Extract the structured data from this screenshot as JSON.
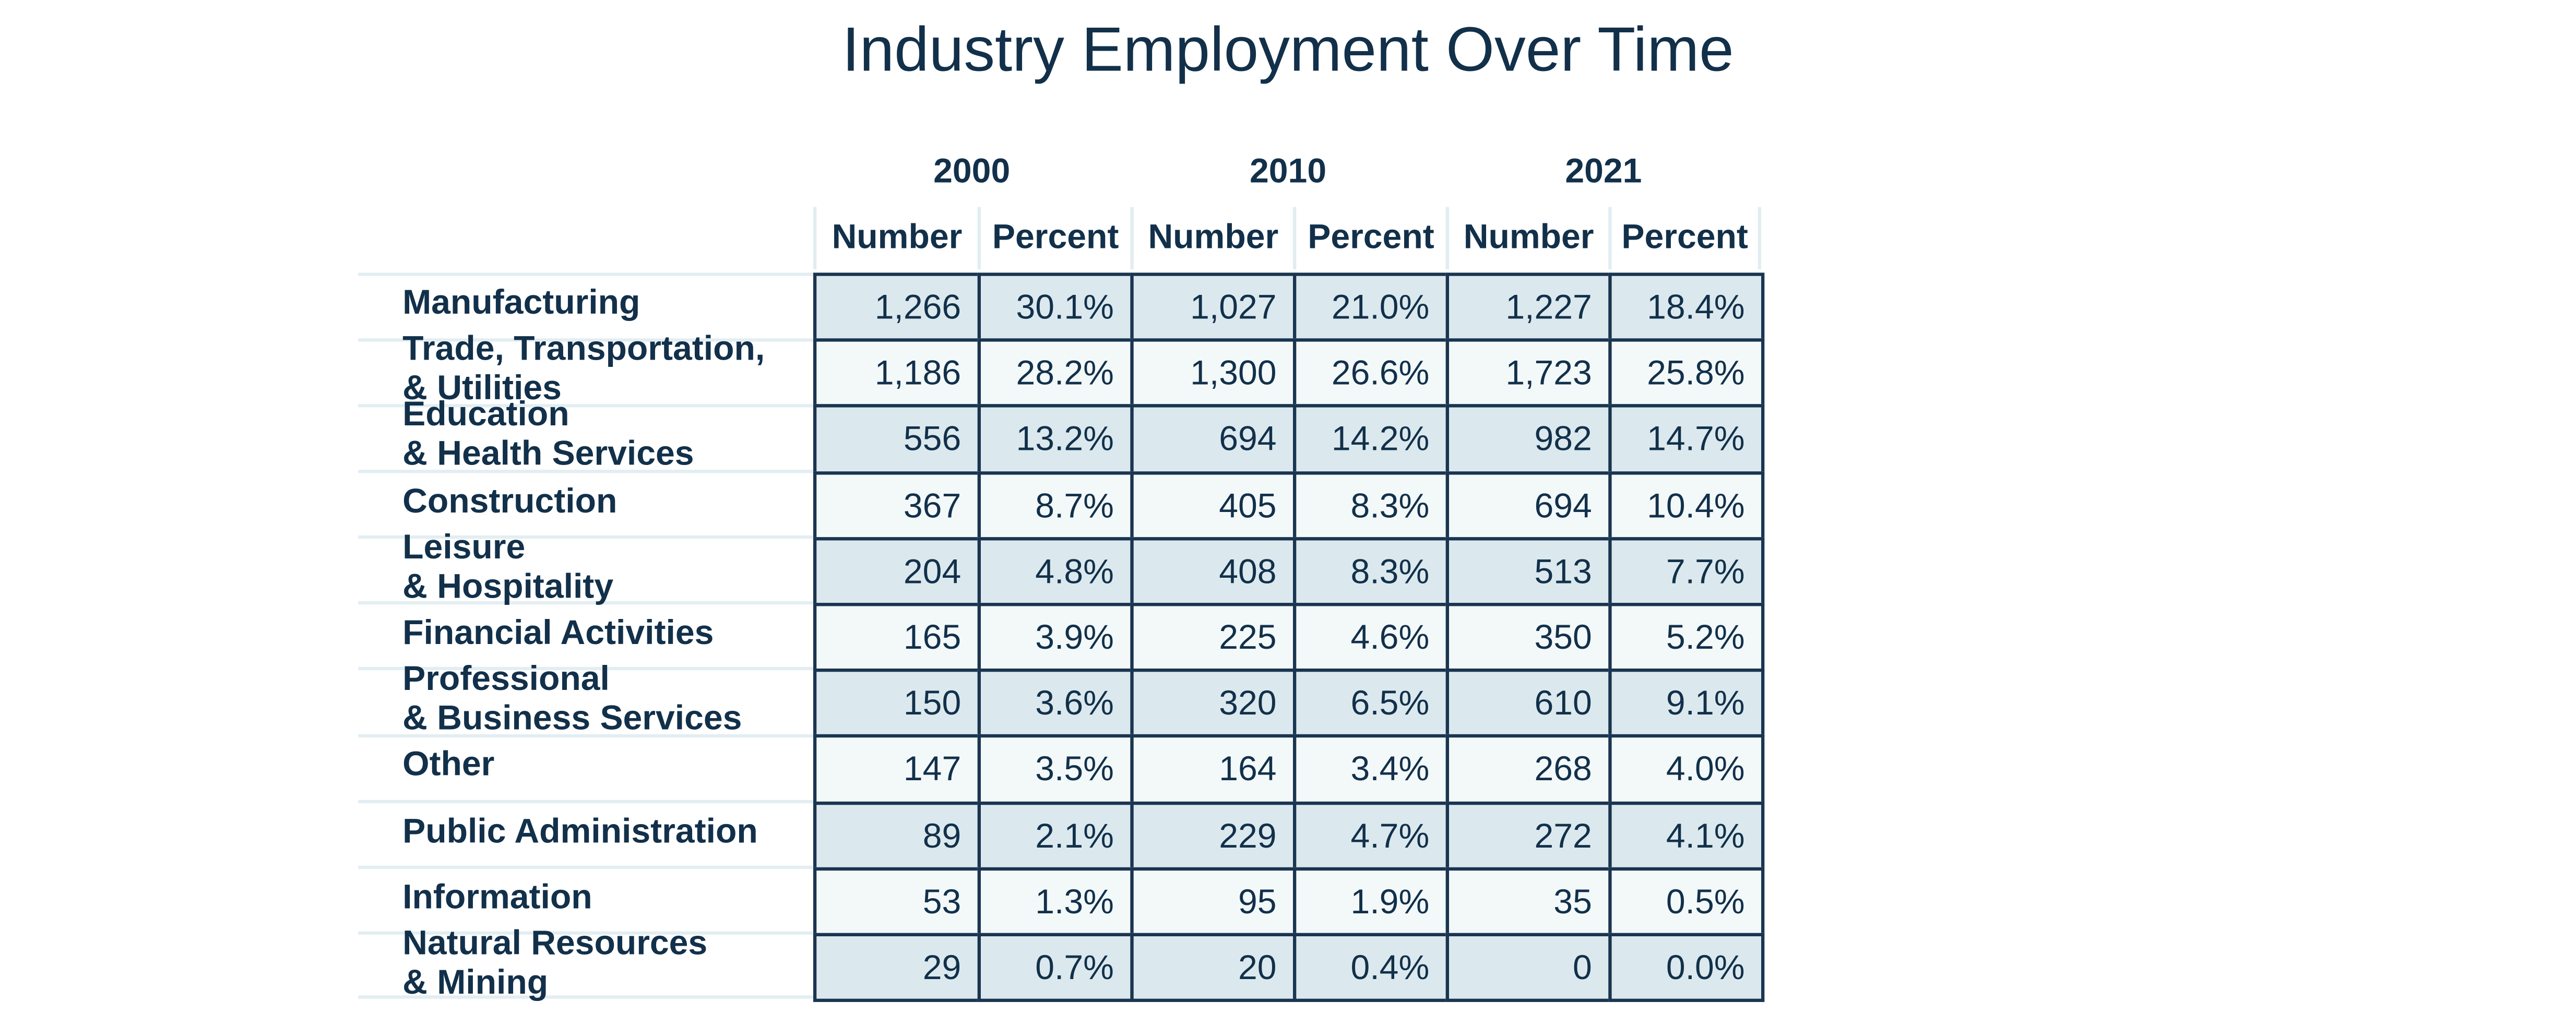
{
  "chart_data": {
    "type": "table",
    "title": "Industry Employment Over Time",
    "years": [
      "2000",
      "2010",
      "2021"
    ],
    "subheaders": [
      "Number",
      "Percent"
    ],
    "rows": [
      {
        "label": [
          "Manufacturing"
        ],
        "values": [
          "1,266",
          "30.1%",
          "1,027",
          "21.0%",
          "1,227",
          "18.4%"
        ]
      },
      {
        "label": [
          "Trade, Transportation,",
          "& Utilities"
        ],
        "values": [
          "1,186",
          "28.2%",
          "1,300",
          "26.6%",
          "1,723",
          "25.8%"
        ]
      },
      {
        "label": [
          "Education",
          "& Health Services"
        ],
        "values": [
          "556",
          "13.2%",
          "694",
          "14.2%",
          "982",
          "14.7%"
        ]
      },
      {
        "label": [
          "Construction"
        ],
        "values": [
          "367",
          "8.7%",
          "405",
          "8.3%",
          "694",
          "10.4%"
        ]
      },
      {
        "label": [
          "Leisure",
          "& Hospitality"
        ],
        "values": [
          "204",
          "4.8%",
          "408",
          "8.3%",
          "513",
          "7.7%"
        ]
      },
      {
        "label": [
          "Financial Activities"
        ],
        "values": [
          "165",
          "3.9%",
          "225",
          "4.6%",
          "350",
          "5.2%"
        ]
      },
      {
        "label": [
          "Professional",
          "& Business Services"
        ],
        "values": [
          "150",
          "3.6%",
          "320",
          "6.5%",
          "610",
          "9.1%"
        ]
      },
      {
        "label": [
          "Other"
        ],
        "values": [
          "147",
          "3.5%",
          "164",
          "3.4%",
          "268",
          "4.0%"
        ]
      },
      {
        "label": [
          "Public Administration"
        ],
        "values": [
          "89",
          "2.1%",
          "229",
          "4.7%",
          "272",
          "4.1%"
        ]
      },
      {
        "label": [
          "Information"
        ],
        "values": [
          "53",
          "1.3%",
          "95",
          "1.9%",
          "35",
          "0.5%"
        ]
      },
      {
        "label": [
          "Natural Resources",
          "& Mining"
        ],
        "values": [
          "29",
          "0.7%",
          "20",
          "0.4%",
          "0",
          "0.0%"
        ]
      }
    ]
  },
  "colors": {
    "text": "#12304a",
    "cell_border": "#1a3550",
    "shade_cell": "#dbe9ee",
    "light_cell": "#f3f8f9",
    "header_line": "#e1edf1"
  }
}
